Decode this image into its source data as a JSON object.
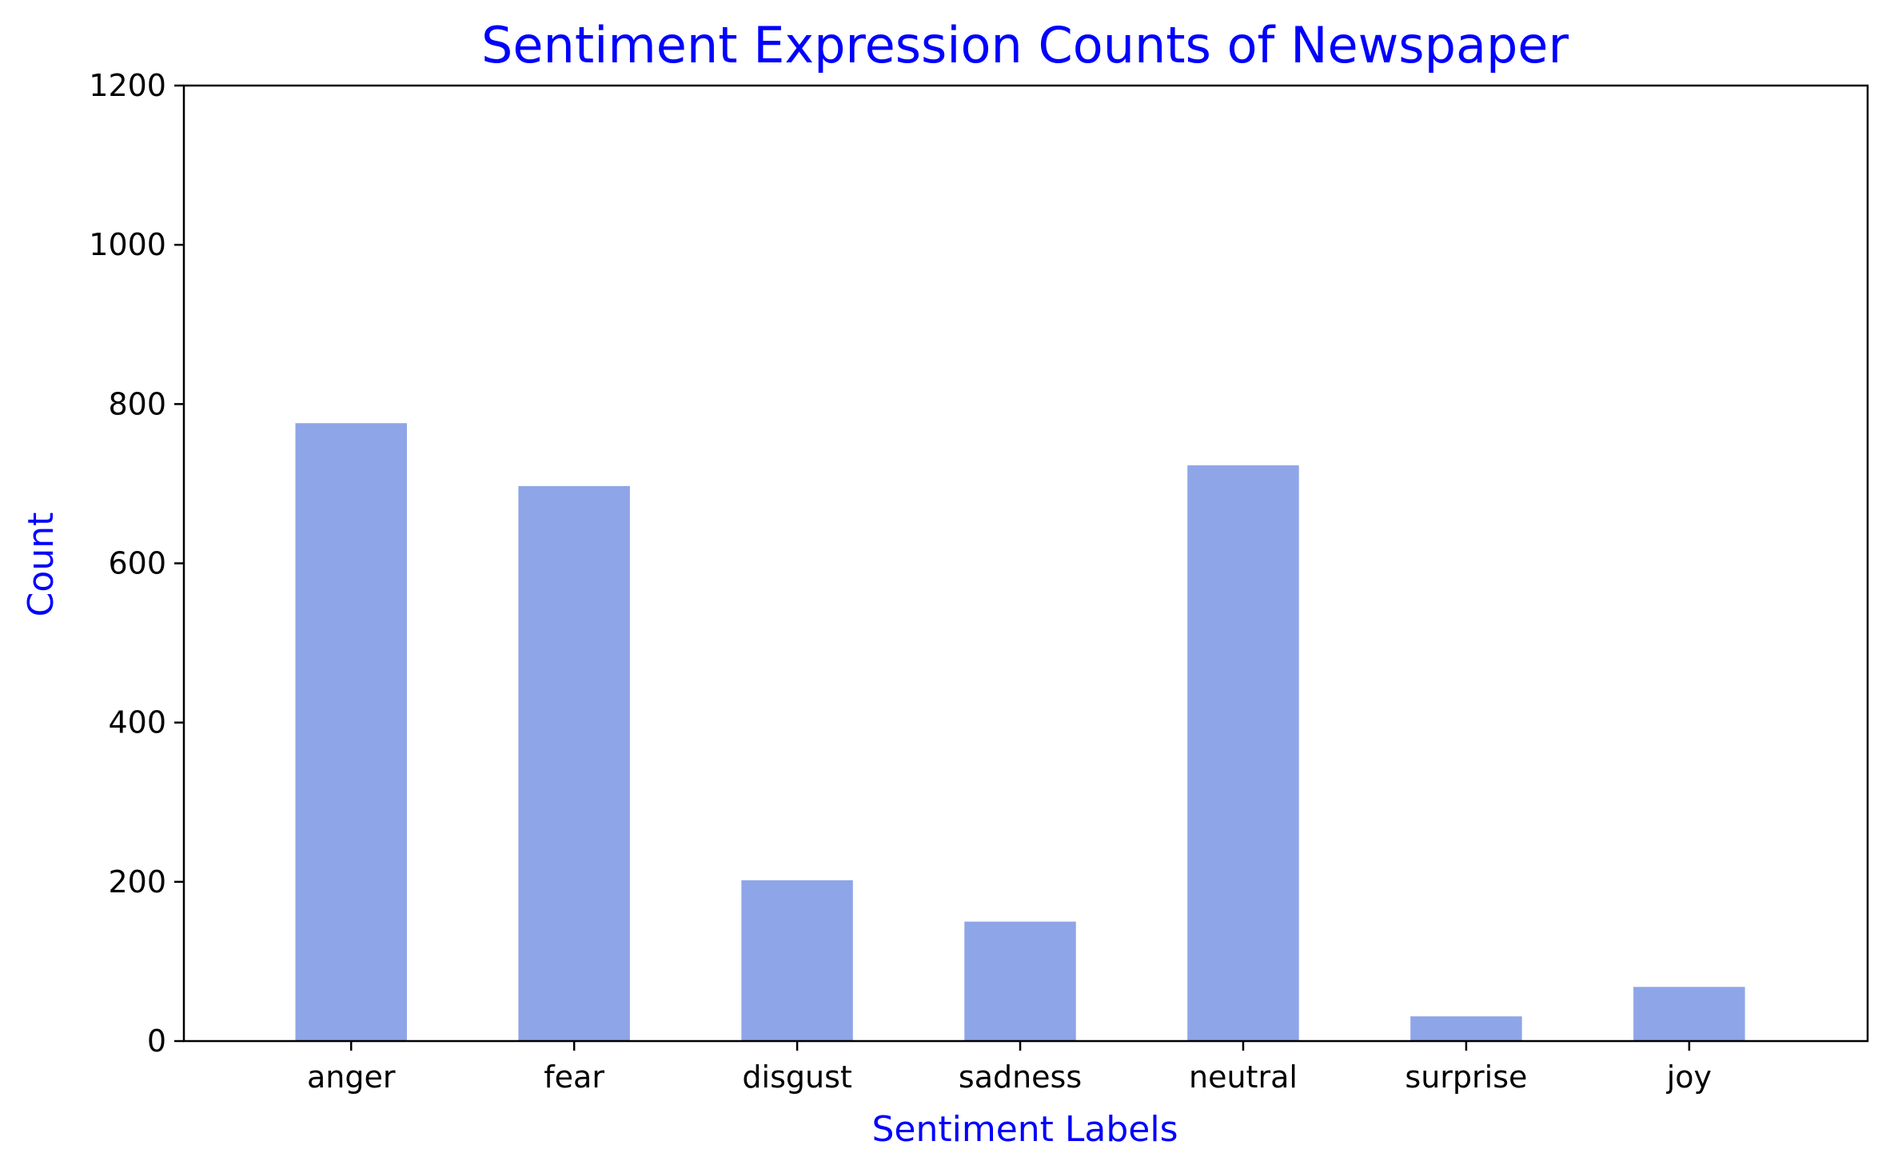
{
  "chart_data": {
    "type": "bar",
    "title": "Sentiment Expression Counts of Newspaper",
    "xlabel": "Sentiment Labels",
    "ylabel": "Count",
    "categories": [
      "anger",
      "fear",
      "disgust",
      "sadness",
      "neutral",
      "surprise",
      "joy"
    ],
    "values": [
      776,
      697,
      202,
      150,
      723,
      31,
      68
    ],
    "ylim": [
      0,
      1200
    ],
    "yticks": [
      0,
      200,
      400,
      600,
      800,
      1000,
      1200
    ],
    "grid": false,
    "legend": "none",
    "colors": {
      "bar": "#8ea5e8",
      "title": "#0000ff",
      "axis_label": "#0000ff",
      "axis": "#000000"
    }
  }
}
